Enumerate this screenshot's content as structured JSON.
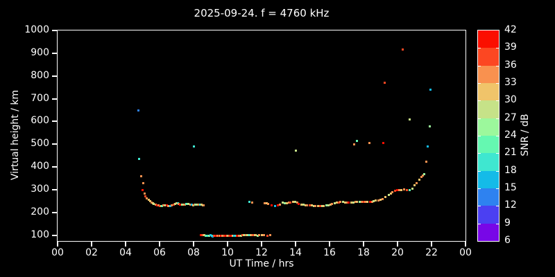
{
  "chart_data": {
    "type": "scatter",
    "title": "2025-09-24. f = 4760 kHz",
    "xlabel": "UT Time / hrs",
    "ylabel": "Virtual height / km",
    "xlim": [
      0,
      24
    ],
    "ylim": [
      75,
      1000
    ],
    "grid": false,
    "x_ticks": [
      {
        "v": 0,
        "label": "00"
      },
      {
        "v": 2,
        "label": "02"
      },
      {
        "v": 4,
        "label": "04"
      },
      {
        "v": 6,
        "label": "06"
      },
      {
        "v": 8,
        "label": "08"
      },
      {
        "v": 10,
        "label": "10"
      },
      {
        "v": 12,
        "label": "12"
      },
      {
        "v": 14,
        "label": "14"
      },
      {
        "v": 16,
        "label": "16"
      },
      {
        "v": 18,
        "label": "18"
      },
      {
        "v": 20,
        "label": "20"
      },
      {
        "v": 22,
        "label": "22"
      },
      {
        "v": 24,
        "label": "00"
      }
    ],
    "y_ticks": [
      {
        "v": 100,
        "label": "100"
      },
      {
        "v": 200,
        "label": "200"
      },
      {
        "v": 300,
        "label": "300"
      },
      {
        "v": 400,
        "label": "400"
      },
      {
        "v": 500,
        "label": "500"
      },
      {
        "v": 600,
        "label": "600"
      },
      {
        "v": 700,
        "label": "700"
      },
      {
        "v": 800,
        "label": "800"
      },
      {
        "v": 900,
        "label": "900"
      },
      {
        "v": 1000,
        "label": "1000"
      }
    ],
    "colorbar": {
      "label": "SNR / dB",
      "tick_values": [
        6,
        9,
        12,
        15,
        18,
        21,
        24,
        27,
        30,
        33,
        36,
        39,
        42
      ],
      "segments": [
        {
          "lo": 39,
          "hi": 42,
          "color": "#fb0f00"
        },
        {
          "lo": 36,
          "hi": 39,
          "color": "#fc4722"
        },
        {
          "lo": 33,
          "hi": 36,
          "color": "#f9914f"
        },
        {
          "lo": 30,
          "hi": 33,
          "color": "#f0c46a"
        },
        {
          "lo": 27,
          "hi": 30,
          "color": "#c6e288"
        },
        {
          "lo": 24,
          "hi": 27,
          "color": "#9cf89c"
        },
        {
          "lo": 21,
          "hi": 24,
          "color": "#65f8b1"
        },
        {
          "lo": 18,
          "hi": 21,
          "color": "#3fe7d0"
        },
        {
          "lo": 15,
          "hi": 18,
          "color": "#14bbe8"
        },
        {
          "lo": 12,
          "hi": 15,
          "color": "#2e82f0"
        },
        {
          "lo": 9,
          "hi": 12,
          "color": "#4b40f2"
        },
        {
          "lo": 6,
          "hi": 9,
          "color": "#7807e7"
        }
      ]
    },
    "points_format": [
      "ut_hours",
      "virtual_height_km",
      "snr_db"
    ],
    "points": [
      [
        4.75,
        650,
        13
      ],
      [
        4.78,
        435,
        19
      ],
      [
        4.9,
        360,
        34
      ],
      [
        5.02,
        330,
        34
      ],
      [
        4.98,
        298,
        40
      ],
      [
        5.1,
        285,
        34
      ],
      [
        5.18,
        272,
        37
      ],
      [
        5.26,
        263,
        34
      ],
      [
        5.35,
        255,
        31
      ],
      [
        5.43,
        249,
        30
      ],
      [
        5.51,
        245,
        34
      ],
      [
        5.59,
        242,
        31
      ],
      [
        5.67,
        239,
        28
      ],
      [
        5.76,
        236,
        34
      ],
      [
        5.84,
        233,
        40
      ],
      [
        5.92,
        231,
        34
      ],
      [
        6.0,
        229,
        37
      ],
      [
        6.08,
        228,
        31
      ],
      [
        6.16,
        229,
        22
      ],
      [
        6.24,
        231,
        34
      ],
      [
        6.33,
        233,
        28
      ],
      [
        6.41,
        232,
        40
      ],
      [
        6.49,
        230,
        34
      ],
      [
        6.57,
        229,
        31
      ],
      [
        6.65,
        230,
        16
      ],
      [
        6.73,
        232,
        34
      ],
      [
        6.82,
        236,
        37
      ],
      [
        6.9,
        239,
        28
      ],
      [
        6.98,
        241,
        31
      ],
      [
        7.06,
        240,
        19
      ],
      [
        7.14,
        238,
        34
      ],
      [
        7.22,
        236,
        40
      ],
      [
        7.31,
        234,
        25
      ],
      [
        7.39,
        234,
        31
      ],
      [
        7.47,
        236,
        34
      ],
      [
        7.55,
        238,
        19
      ],
      [
        7.63,
        239,
        22
      ],
      [
        7.71,
        238,
        28
      ],
      [
        7.8,
        236,
        34
      ],
      [
        7.88,
        234,
        16
      ],
      [
        7.96,
        233,
        31
      ],
      [
        8.04,
        234,
        37
      ],
      [
        8.12,
        235,
        25
      ],
      [
        8.2,
        236,
        28
      ],
      [
        8.29,
        236,
        34
      ],
      [
        8.37,
        235,
        19
      ],
      [
        8.45,
        234,
        31
      ],
      [
        8.53,
        233,
        28
      ],
      [
        8.61,
        233,
        34
      ],
      [
        8.02,
        490,
        19
      ],
      [
        11.27,
        246,
        19
      ],
      [
        11.43,
        243,
        34
      ],
      [
        14.0,
        473,
        28
      ],
      [
        8.41,
        101,
        40
      ],
      [
        8.49,
        100,
        37
      ],
      [
        8.57,
        100,
        34
      ],
      [
        8.65,
        100,
        31
      ],
      [
        8.73,
        99,
        22
      ],
      [
        8.82,
        98,
        19
      ],
      [
        8.9,
        99,
        25
      ],
      [
        8.98,
        100,
        16
      ],
      [
        9.06,
        97,
        19
      ],
      [
        9.14,
        96,
        16
      ],
      [
        9.22,
        97,
        37
      ],
      [
        9.31,
        98,
        40
      ],
      [
        9.39,
        98,
        34
      ],
      [
        9.47,
        97,
        37
      ],
      [
        9.55,
        98,
        31
      ],
      [
        9.63,
        98,
        40
      ],
      [
        9.71,
        97,
        34
      ],
      [
        9.8,
        98,
        37
      ],
      [
        9.88,
        98,
        40
      ],
      [
        9.96,
        99,
        34
      ],
      [
        10.04,
        98,
        28
      ],
      [
        10.12,
        98,
        37
      ],
      [
        10.2,
        99,
        40
      ],
      [
        10.29,
        98,
        31
      ],
      [
        10.37,
        98,
        16
      ],
      [
        10.45,
        99,
        19
      ],
      [
        10.53,
        98,
        37
      ],
      [
        10.61,
        99,
        40
      ],
      [
        10.69,
        98,
        34
      ],
      [
        10.78,
        99,
        28
      ],
      [
        10.86,
        100,
        37
      ],
      [
        10.94,
        100,
        31
      ],
      [
        11.02,
        100,
        25
      ],
      [
        11.1,
        100,
        34
      ],
      [
        11.18,
        100,
        28
      ],
      [
        11.27,
        100,
        19
      ],
      [
        11.35,
        100,
        31
      ],
      [
        11.43,
        100,
        34
      ],
      [
        11.51,
        100,
        37
      ],
      [
        11.59,
        100,
        28
      ],
      [
        11.67,
        100,
        31
      ],
      [
        11.76,
        99,
        25
      ],
      [
        11.84,
        100,
        34
      ],
      [
        12.0,
        100,
        31
      ],
      [
        12.16,
        100,
        34
      ],
      [
        12.33,
        99,
        37
      ],
      [
        12.49,
        100,
        34
      ],
      [
        12.2,
        240,
        34
      ],
      [
        12.29,
        240,
        31
      ],
      [
        12.37,
        238,
        34
      ],
      [
        12.57,
        231,
        40
      ],
      [
        12.78,
        228,
        16
      ],
      [
        12.97,
        233,
        40
      ],
      [
        13.1,
        235,
        34
      ],
      [
        13.24,
        243,
        28
      ],
      [
        13.35,
        240,
        25
      ],
      [
        13.47,
        241,
        31
      ],
      [
        13.59,
        243,
        34
      ],
      [
        13.71,
        245,
        37
      ],
      [
        13.84,
        247,
        31
      ],
      [
        13.96,
        246,
        28
      ],
      [
        14.08,
        243,
        34
      ],
      [
        14.2,
        239,
        40
      ],
      [
        14.33,
        236,
        31
      ],
      [
        14.45,
        234,
        28
      ],
      [
        14.57,
        233,
        31
      ],
      [
        14.69,
        232,
        34
      ],
      [
        14.82,
        231,
        37
      ],
      [
        14.94,
        231,
        31
      ],
      [
        15.06,
        230,
        28
      ],
      [
        15.18,
        229,
        34
      ],
      [
        15.31,
        228,
        31
      ],
      [
        15.43,
        228,
        37
      ],
      [
        15.55,
        228,
        28
      ],
      [
        15.67,
        229,
        31
      ],
      [
        15.8,
        231,
        25
      ],
      [
        15.92,
        233,
        28
      ],
      [
        16.04,
        236,
        31
      ],
      [
        16.16,
        239,
        34
      ],
      [
        16.29,
        242,
        28
      ],
      [
        16.41,
        244,
        31
      ],
      [
        16.53,
        245,
        37
      ],
      [
        16.65,
        246,
        34
      ],
      [
        16.78,
        246,
        28
      ],
      [
        16.9,
        245,
        31
      ],
      [
        17.02,
        244,
        34
      ],
      [
        17.14,
        243,
        40
      ],
      [
        17.27,
        243,
        31
      ],
      [
        17.39,
        244,
        28
      ],
      [
        17.51,
        246,
        34
      ],
      [
        17.63,
        247,
        31
      ],
      [
        17.76,
        248,
        25
      ],
      [
        17.88,
        248,
        34
      ],
      [
        18.0,
        247,
        37
      ],
      [
        18.12,
        246,
        34
      ],
      [
        18.24,
        246,
        31
      ],
      [
        18.37,
        247,
        40
      ],
      [
        18.49,
        248,
        34
      ],
      [
        18.61,
        250,
        28
      ],
      [
        18.73,
        252,
        31
      ],
      [
        18.86,
        254,
        34
      ],
      [
        19.0,
        257,
        31
      ],
      [
        19.12,
        260,
        34
      ],
      [
        19.27,
        267,
        31
      ],
      [
        19.47,
        276,
        28
      ],
      [
        19.63,
        284,
        31
      ],
      [
        19.71,
        290,
        34
      ],
      [
        19.84,
        296,
        37
      ],
      [
        19.96,
        299,
        40
      ],
      [
        20.1,
        300,
        34
      ],
      [
        20.22,
        299,
        31
      ],
      [
        20.39,
        303,
        34
      ],
      [
        20.55,
        300,
        37
      ],
      [
        20.71,
        300,
        22
      ],
      [
        20.88,
        305,
        28
      ],
      [
        21.0,
        319,
        31
      ],
      [
        21.14,
        328,
        34
      ],
      [
        21.29,
        343,
        31
      ],
      [
        21.41,
        358,
        34
      ],
      [
        21.47,
        362,
        34
      ],
      [
        21.55,
        368,
        25
      ],
      [
        21.68,
        425,
        34
      ],
      [
        21.78,
        490,
        16
      ],
      [
        21.88,
        580,
        25
      ],
      [
        21.92,
        740,
        16
      ],
      [
        17.45,
        500,
        34
      ],
      [
        17.63,
        515,
        22
      ],
      [
        18.35,
        505,
        34
      ],
      [
        19.16,
        505,
        40
      ],
      [
        19.24,
        770,
        37
      ],
      [
        20.29,
        915,
        37
      ],
      [
        20.73,
        610,
        28
      ]
    ]
  }
}
